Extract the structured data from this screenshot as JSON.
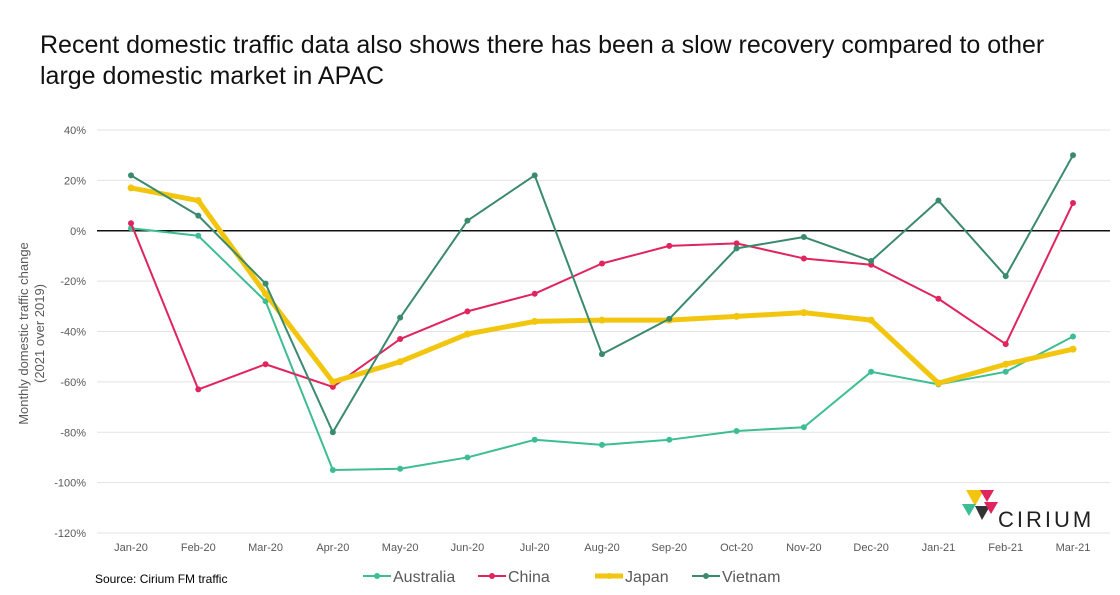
{
  "title": "Recent domestic traffic data also shows there has been a slow recovery compared to other large domestic market in APAC",
  "source": "Source: Cirium FM traffic",
  "logo_text": "CIRIUM",
  "chart_data": {
    "type": "line",
    "title": "",
    "xlabel": "",
    "ylabel": "Monthly domestic traffic change",
    "ylabel_sub": "(2021 over 2019)",
    "categories": [
      "Jan-20",
      "Feb-20",
      "Mar-20",
      "Apr-20",
      "May-20",
      "Jun-20",
      "Jul-20",
      "Aug-20",
      "Sep-20",
      "Oct-20",
      "Nov-20",
      "Dec-20",
      "Jan-21",
      "Feb-21",
      "Mar-21"
    ],
    "ylim": [
      -120,
      40
    ],
    "yticks": [
      40,
      20,
      0,
      -20,
      -40,
      -60,
      -80,
      -100,
      -120
    ],
    "ytick_labels": [
      "40%",
      "20%",
      "0%",
      "-20%",
      "-40%",
      "-60%",
      "-80%",
      "-100%",
      "-120%"
    ],
    "grid": "horizontal",
    "legend_position": "bottom",
    "series": [
      {
        "name": "Australia",
        "color": "#3dbd94",
        "width": 2,
        "values": [
          1,
          -2,
          -28,
          -95,
          -94.5,
          -90,
          -83,
          -85,
          -83,
          -79.5,
          -78,
          -56,
          -61,
          -56,
          -42
        ]
      },
      {
        "name": "China",
        "color": "#e0245e",
        "width": 2,
        "values": [
          3,
          -63,
          -53,
          -62,
          -43,
          -32,
          -25,
          -13,
          -6,
          -5,
          -11,
          -13.5,
          -27,
          -45,
          11
        ]
      },
      {
        "name": "Japan",
        "color": "#f2c60f",
        "width": 5,
        "values": [
          17,
          12,
          -25,
          -60,
          -52,
          -41,
          -36,
          -35.5,
          -35.5,
          -34,
          -32.5,
          -35.5,
          -60.5,
          -53,
          -47
        ]
      },
      {
        "name": "Vietnam",
        "color": "#3a8a6e",
        "width": 2,
        "values": [
          22,
          6,
          -21,
          -80,
          -34.5,
          4,
          22,
          -49,
          -35,
          -7,
          -2.5,
          -12,
          12,
          -18,
          30
        ]
      }
    ]
  }
}
